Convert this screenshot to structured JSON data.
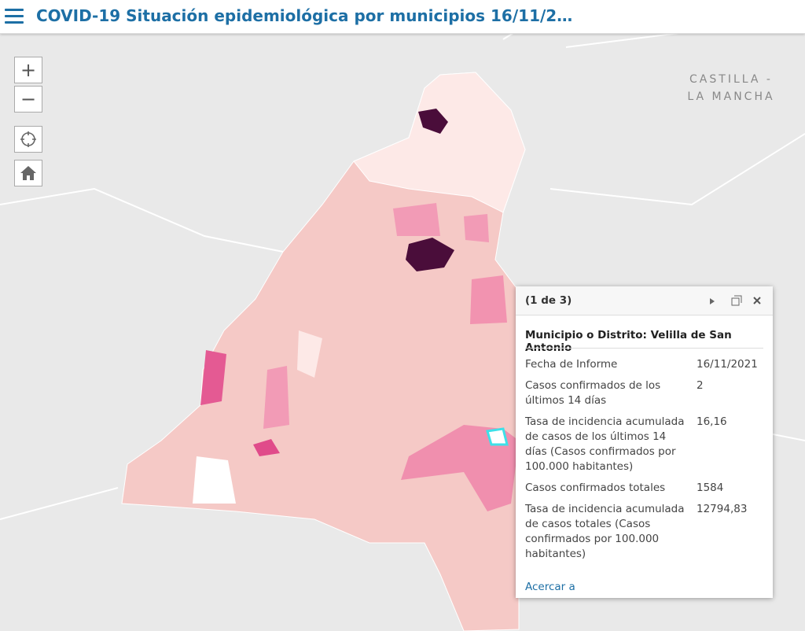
{
  "header": {
    "title": "COVID-19 Situación epidemiológica por municipios 16/11/2…"
  },
  "map": {
    "region_label": [
      "CASTILLA -",
      "LA MANCHA"
    ]
  },
  "controls": {
    "zoom_in": "+",
    "zoom_out": "−"
  },
  "popup": {
    "counter": "(1 de 3)",
    "heading": "Municipio o Distrito: Velilla de San Antonio",
    "rows": [
      [
        "Fecha de Informe",
        "16/11/2021"
      ],
      [
        "Casos confirmados de los últimos 14 días",
        "2"
      ],
      [
        "Tasa de incidencia acumulada de casos de los últimos 14 días (Casos confirmados por 100.000 habitantes)",
        "16,16"
      ],
      [
        "Casos confirmados totales",
        "1584"
      ],
      [
        "Tasa de incidencia acumulada de casos totales (Casos confirmados por 100.000 habitantes)",
        "12794,83"
      ]
    ],
    "link": "Acercar a"
  }
}
